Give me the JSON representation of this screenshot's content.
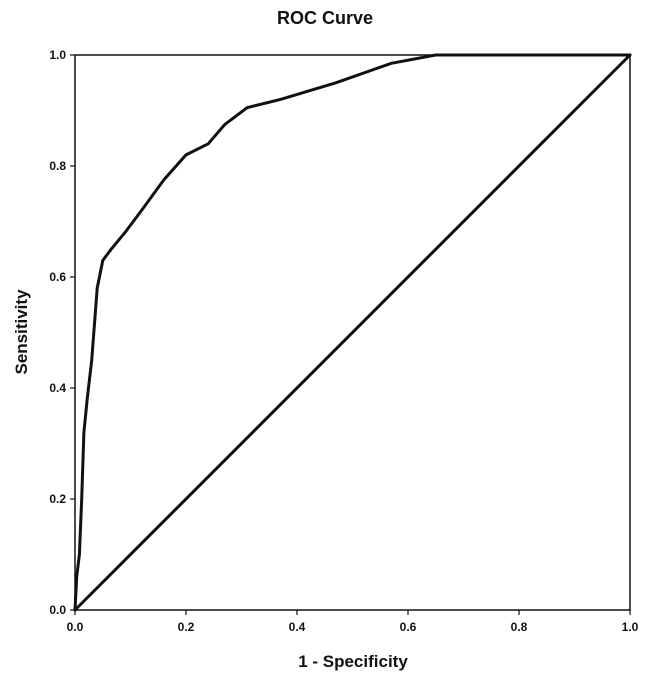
{
  "chart_data": {
    "type": "line",
    "title": "ROC Curve",
    "xlabel": "1 - Specificity",
    "ylabel": "Sensitivity",
    "xlim": [
      0.0,
      1.0
    ],
    "ylim": [
      0.0,
      1.0
    ],
    "x_ticks": [
      "0.0",
      "0.2",
      "0.4",
      "0.6",
      "0.8",
      "1.0"
    ],
    "y_ticks": [
      "0.0",
      "0.2",
      "0.4",
      "0.6",
      "0.8",
      "1.0"
    ],
    "grid": false,
    "legend": "none",
    "line_color": "#111111",
    "series": [
      {
        "x": [
          0.0,
          0.003,
          0.008,
          0.012,
          0.016,
          0.022,
          0.03,
          0.04,
          0.05,
          0.065,
          0.09,
          0.12,
          0.16,
          0.2,
          0.24,
          0.27,
          0.31,
          0.37,
          0.47,
          0.57,
          0.65,
          0.69,
          1.0
        ],
        "y": [
          0.0,
          0.06,
          0.1,
          0.2,
          0.32,
          0.38,
          0.45,
          0.58,
          0.63,
          0.65,
          0.68,
          0.72,
          0.775,
          0.82,
          0.84,
          0.875,
          0.905,
          0.92,
          0.95,
          0.985,
          1.0,
          1.0,
          1.0
        ]
      },
      {
        "x": [
          0.0,
          1.0
        ],
        "y": [
          0.0,
          1.0
        ]
      }
    ]
  }
}
